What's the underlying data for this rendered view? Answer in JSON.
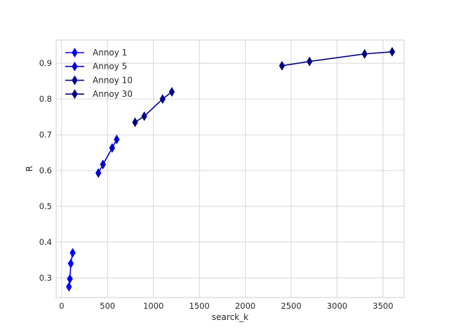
{
  "chart_data": {
    "type": "line",
    "title": "",
    "xlabel": "searck_k",
    "ylabel": "R",
    "xlim": [
      -60,
      3730
    ],
    "ylim": [
      0.245,
      0.965
    ],
    "xticks": [
      0,
      500,
      1000,
      1500,
      2000,
      2500,
      3000,
      3500
    ],
    "yticks": [
      0.3,
      0.4,
      0.5,
      0.6,
      0.7,
      0.8,
      0.9
    ],
    "grid": true,
    "legend_position": "top-left",
    "marker": "thin-diamond",
    "series": [
      {
        "name": "Annoy 1",
        "color": "#0000ff",
        "x": [
          80,
          90,
          100,
          120
        ],
        "y": [
          0.275,
          0.297,
          0.34,
          0.37
        ]
      },
      {
        "name": "Annoy 5",
        "color": "#0000cd",
        "x": [
          400,
          450,
          550,
          600
        ],
        "y": [
          0.593,
          0.617,
          0.663,
          0.687
        ]
      },
      {
        "name": "Annoy 10",
        "color": "#00008b",
        "x": [
          800,
          900,
          1100,
          1200
        ],
        "y": [
          0.735,
          0.752,
          0.8,
          0.82
        ]
      },
      {
        "name": "Annoy 30",
        "color": "#000080",
        "x": [
          2400,
          2700,
          3300,
          3600
        ],
        "y": [
          0.893,
          0.905,
          0.926,
          0.932
        ]
      }
    ]
  }
}
